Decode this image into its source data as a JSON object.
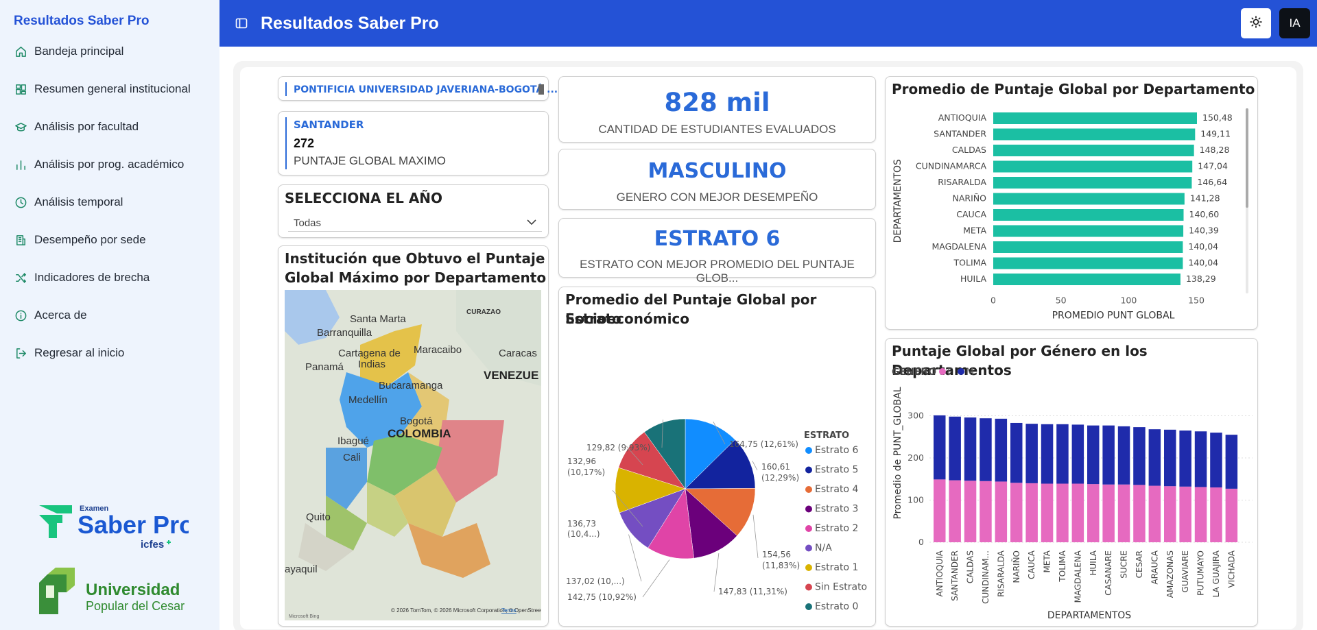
{
  "sidebar": {
    "title": "Resultados Saber Pro",
    "items": [
      {
        "label": "Bandeja principal",
        "icon": "home-icon"
      },
      {
        "label": "Resumen general institucional",
        "icon": "dashboard-icon"
      },
      {
        "label": "Análisis por facultad",
        "icon": "graduation-cap-icon"
      },
      {
        "label": "Análisis por prog. académico",
        "icon": "bar-chart-icon"
      },
      {
        "label": "Análisis temporal",
        "icon": "clock-icon"
      },
      {
        "label": "Desempeño por sede",
        "icon": "building-icon"
      },
      {
        "label": "Indicadores de brecha",
        "icon": "shuffle-icon"
      },
      {
        "label": "Acerca de",
        "icon": "info-icon"
      },
      {
        "label": "Regresar al inicio",
        "icon": "logout-icon"
      }
    ],
    "logo_saber": {
      "small": "Examen",
      "name": "Saber Pro",
      "sub": "icfes"
    },
    "logo_upc": {
      "line1": "Universidad",
      "line2": "Popular del Cesar"
    }
  },
  "topbar": {
    "title": "Resultados Saber Pro",
    "ia_label": "IA"
  },
  "filters": {
    "institution": "PONTIFICIA UNIVERSIDAD JAVERIANA-BOGOTÁ ...",
    "max_card": {
      "department": "SANTANDER",
      "value": "272",
      "label": "PUNTAJE GLOBAL MAXIMO"
    },
    "year": {
      "title": "SELECCIONA EL AÑO",
      "selected": "Todas"
    }
  },
  "kpis": [
    {
      "value": "828 mil",
      "label": "CANTIDAD DE ESTUDIANTES EVALUADOS"
    },
    {
      "value": "MASCULINO",
      "label": "GENERO CON MEJOR DESEMPEÑO"
    },
    {
      "value": "ESTRATO 6",
      "label": "ESTRATO CON MEJOR PROMEDIO DEL PUNTAJE GLOB..."
    }
  ],
  "map": {
    "title_line1": "Institución que Obtuvo el Puntaje",
    "title_line2": "Global Máximo por Departamento",
    "labels": [
      "Santa Marta",
      "CURAZAO",
      "Barranquilla",
      "Maracaibo",
      "Cartagena de",
      "Indias",
      "Caracas",
      "Panamá",
      "VENEZUE",
      "Bucaramanga",
      "Medellín",
      "Bogotá",
      "Ibagué",
      "COLOMBIA",
      "Cali",
      "Quito",
      "ayaquil"
    ],
    "attribution": "© 2026 TomTom, © 2026 Microsoft Corporation, © OpenStreetMap",
    "terms": "Terms",
    "bing": "Microsoft Bing"
  },
  "chart_data": [
    {
      "type": "bar",
      "orientation": "horizontal",
      "title": "Promedio de Puntaje Global por Departamento",
      "xlabel": "PROMEDIO PUNT GLOBAL",
      "ylabel": "DEPARTAMENTOS",
      "categories": [
        "ANTIOQUIA",
        "SANTANDER",
        "CALDAS",
        "CUNDINAMARCA",
        "RISARALDA",
        "NARIÑO",
        "CAUCA",
        "META",
        "MAGDALENA",
        "TOLIMA",
        "HUILA"
      ],
      "values": [
        150.48,
        149.11,
        148.28,
        147.04,
        146.64,
        141.28,
        140.6,
        140.39,
        140.04,
        140.04,
        138.29
      ],
      "labels": [
        "150,48",
        "149,11",
        "148,28",
        "147,04",
        "146,64",
        "141,28",
        "140,60",
        "140,39",
        "140,04",
        "140,04",
        "138,29"
      ],
      "xticks": [
        "0",
        "50",
        "100",
        "150"
      ],
      "xlim": [
        0,
        160
      ],
      "color": "#1bbfa3"
    },
    {
      "type": "pie",
      "title_line1": "Promedio del Puntaje Global por Estrato",
      "title_line2": "Socioeconómico",
      "legend_title": "ESTRATO",
      "slices": [
        {
          "name": "Estrato 6",
          "value": 164.75,
          "label": "164,75 (12,61%)",
          "color": "#118dff"
        },
        {
          "name": "Estrato 5",
          "value": 160.61,
          "label": "160,61 (12,29%)",
          "color": "#12239e"
        },
        {
          "name": "Estrato 4",
          "value": 154.56,
          "label": "154,56 (11,83%)",
          "color": "#e66c37"
        },
        {
          "name": "Estrato 3",
          "value": 147.83,
          "label": "147,83 (11,31%)",
          "color": "#6b007b"
        },
        {
          "name": "Estrato 2",
          "value": 142.75,
          "label": "142,75 (10,92%)",
          "color": "#e044a7"
        },
        {
          "name": "N/A",
          "value": 137.02,
          "label": "137,02 (10,...)",
          "color": "#744ec2"
        },
        {
          "name": "Estrato 1",
          "value": 136.73,
          "label": "136,73 (10,4...)",
          "color": "#d9b300"
        },
        {
          "name": "Sin Estrato",
          "value": 132.96,
          "label": "132,96 (10,17%)",
          "color": "#d64550"
        },
        {
          "name": "Estrato 0",
          "value": 129.82,
          "label": "129,82 (9,93%)",
          "color": "#197278"
        }
      ]
    },
    {
      "type": "bar",
      "stacked": true,
      "title": "Puntaje Global por Género en los Departamentos",
      "legend_title": "GENERO",
      "xlabel": "DEPARTAMENTOS",
      "ylabel": "Promedio de PUNT_GLOBAL",
      "ylim": [
        0,
        320
      ],
      "yticks": [
        "0",
        "100",
        "200",
        "300"
      ],
      "categories": [
        "ANTIOQUIA",
        "SANTANDER",
        "CALDAS",
        "CUNDINAM...",
        "RISARALDA",
        "NARIÑO",
        "CAUCA",
        "META",
        "TOLIMA",
        "MAGDALENA",
        "HUILA",
        "CASANARE",
        "SUCRE",
        "CESAR",
        "ARAUCA",
        "AMAZONAS",
        "GUAVIARE",
        "PUTUMAYO",
        "LA GUAJIRA",
        "VICHADA"
      ],
      "series": [
        {
          "name": "F",
          "color": "#e66ac0",
          "values": [
            149,
            147,
            146,
            145,
            144,
            141,
            140,
            139,
            139,
            139,
            138,
            137,
            137,
            136,
            134,
            133,
            132,
            131,
            130,
            127
          ]
        },
        {
          "name": "M",
          "color": "#1f2bab",
          "values": [
            152,
            151,
            150,
            149,
            149,
            142,
            141,
            141,
            141,
            140,
            139,
            140,
            138,
            137,
            134,
            134,
            133,
            132,
            130,
            128
          ]
        }
      ]
    }
  ]
}
